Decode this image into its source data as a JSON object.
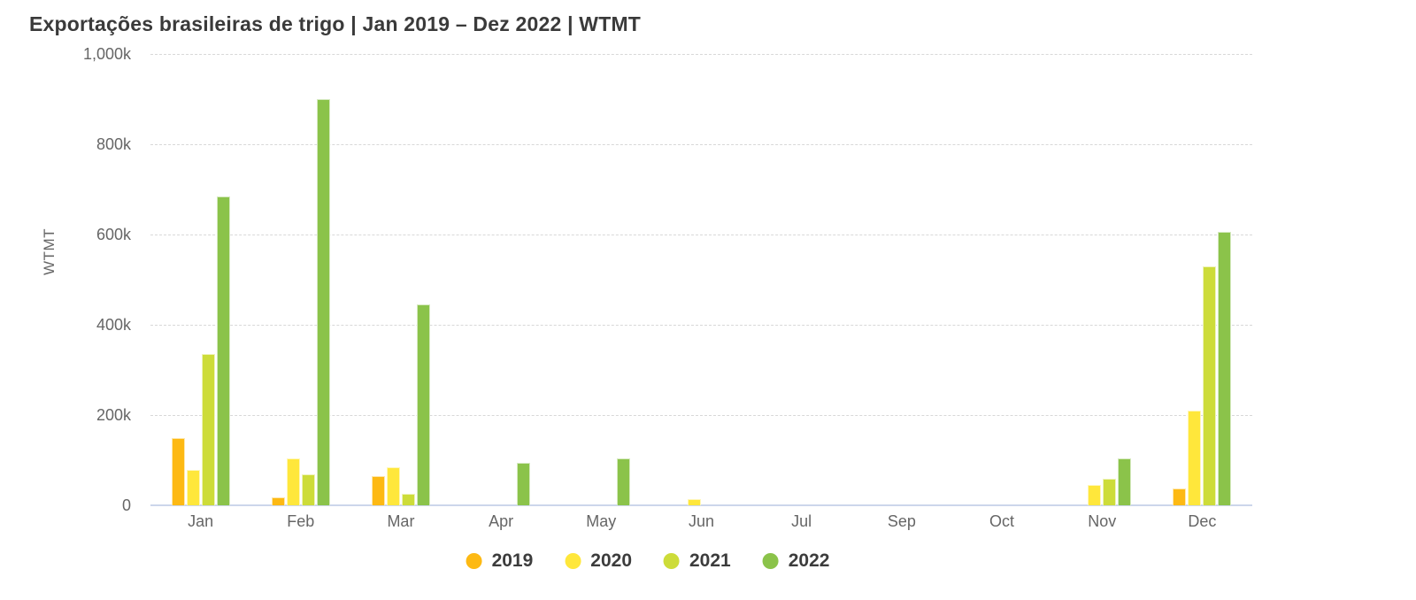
{
  "chart": {
    "title": "Exportações brasileiras de trigo | Jan 2019 – Dez 2022 | WTMT",
    "y_axis_title": "WTMT"
  },
  "chart_data": {
    "type": "bar",
    "title": "Exportações brasileiras de trigo | Jan 2019 – Dez 2022 | WTMT",
    "xlabel": "",
    "ylabel": "WTMT",
    "unit": "k (thousands of WTMT)",
    "categories": [
      "Jan",
      "Feb",
      "Mar",
      "Apr",
      "May",
      "Jun",
      "Jul",
      "Sep",
      "Oct",
      "Nov",
      "Dec"
    ],
    "series": [
      {
        "name": "2019",
        "color": "#FDB913",
        "values": [
          150,
          18,
          65,
          0,
          0,
          0,
          0,
          0,
          0,
          0,
          37
        ]
      },
      {
        "name": "2020",
        "color": "#FFE73B",
        "values": [
          78,
          103,
          85,
          0,
          0,
          14,
          0,
          0,
          0,
          46,
          210
        ]
      },
      {
        "name": "2021",
        "color": "#CDDC39",
        "values": [
          335,
          68,
          26,
          0,
          0,
          0,
          0,
          0,
          0,
          58,
          530
        ]
      },
      {
        "name": "2022",
        "color": "#8BC34A",
        "values": [
          685,
          900,
          445,
          95,
          103,
          0,
          0,
          0,
          0,
          103,
          605
        ]
      }
    ],
    "ylim": [
      0,
      1000
    ],
    "y_ticks": [
      {
        "label": "1,000k",
        "value": 1000
      },
      {
        "label": "800k",
        "value": 800
      },
      {
        "label": "600k",
        "value": 600
      },
      {
        "label": "400k",
        "value": 400
      },
      {
        "label": "200k",
        "value": 200
      },
      {
        "label": "0",
        "value": 0
      }
    ],
    "grid": "horizontal-dashed",
    "legend_position": "bottom-center",
    "axis_line_color": "#ccd6eb",
    "gridline_color": "#d8d8d8",
    "tick_text_color": "#666666"
  }
}
